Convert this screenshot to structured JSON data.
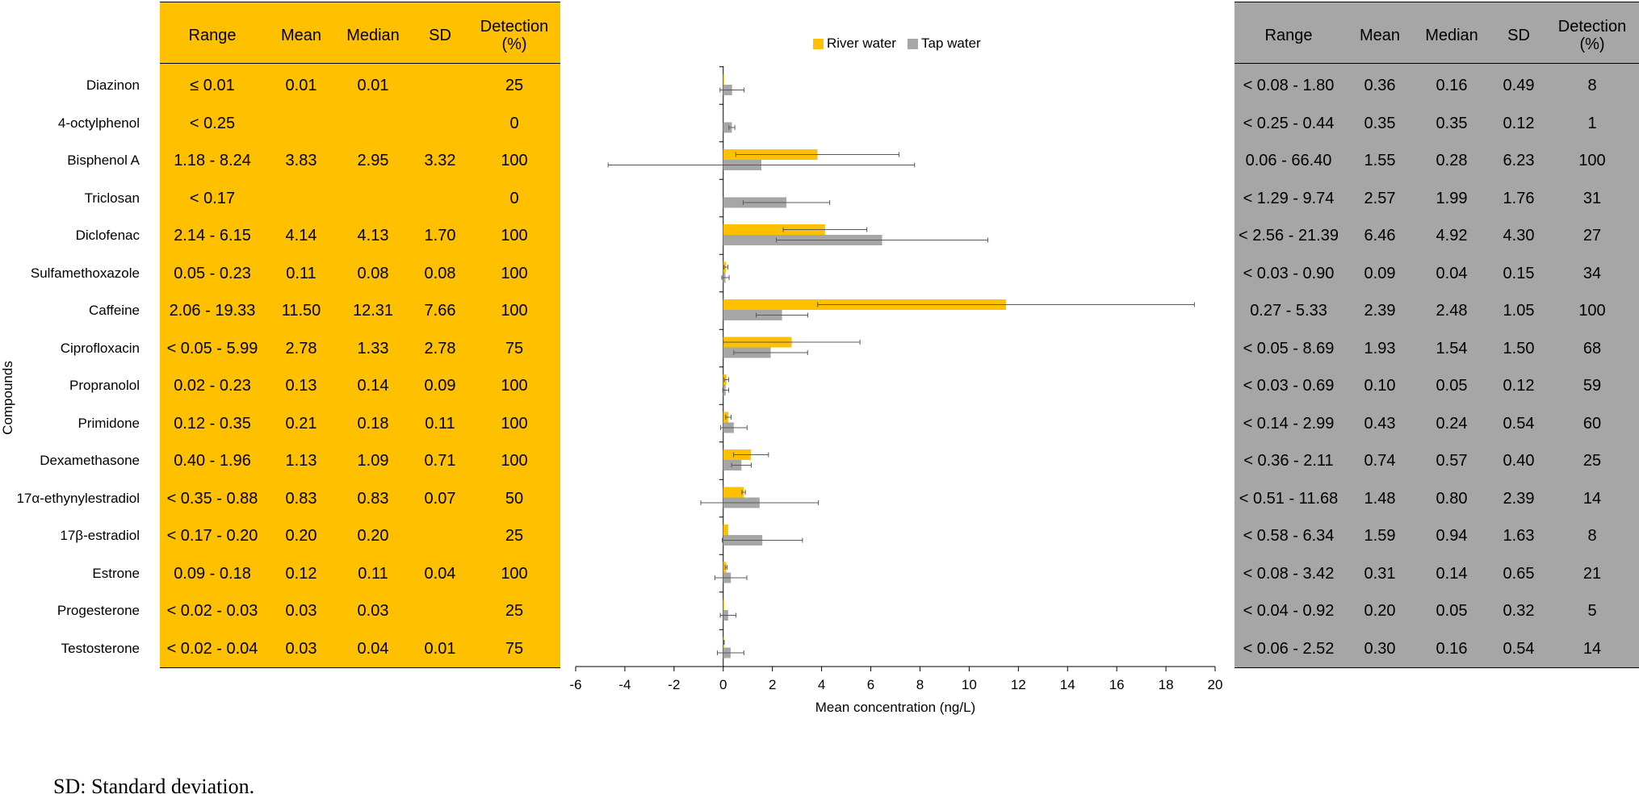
{
  "colors": {
    "river": "#FFC000",
    "tap": "#A6A6A6",
    "left_table_bg": "#FFC000",
    "right_table_bg": "#A6A6A6"
  },
  "ylabel": "Compounds",
  "footnote": "SD: Standard deviation.",
  "left_table": {
    "headers": [
      "Range",
      "Mean",
      "Median",
      "SD",
      "Detection\n(%)"
    ],
    "rows": [
      [
        "≤ 0.01",
        "0.01",
        "0.01",
        "",
        "25"
      ],
      [
        "< 0.25",
        "",
        "",
        "",
        "0"
      ],
      [
        "1.18 - 8.24",
        "3.83",
        "2.95",
        "3.32",
        "100"
      ],
      [
        "< 0.17",
        "",
        "",
        "",
        "0"
      ],
      [
        "2.14 - 6.15",
        "4.14",
        "4.13",
        "1.70",
        "100"
      ],
      [
        "0.05 - 0.23",
        "0.11",
        "0.08",
        "0.08",
        "100"
      ],
      [
        "2.06 - 19.33",
        "11.50",
        "12.31",
        "7.66",
        "100"
      ],
      [
        "< 0.05 - 5.99",
        "2.78",
        "1.33",
        "2.78",
        "75"
      ],
      [
        "0.02 - 0.23",
        "0.13",
        "0.14",
        "0.09",
        "100"
      ],
      [
        "0.12 - 0.35",
        "0.21",
        "0.18",
        "0.11",
        "100"
      ],
      [
        "0.40 - 1.96",
        "1.13",
        "1.09",
        "0.71",
        "100"
      ],
      [
        "< 0.35 - 0.88",
        "0.83",
        "0.83",
        "0.07",
        "50"
      ],
      [
        "< 0.17 - 0.20",
        "0.20",
        "0.20",
        "",
        "25"
      ],
      [
        "0.09 - 0.18",
        "0.12",
        "0.11",
        "0.04",
        "100"
      ],
      [
        "< 0.02 - 0.03",
        "0.03",
        "0.03",
        "",
        "25"
      ],
      [
        "< 0.02 - 0.04",
        "0.03",
        "0.04",
        "0.01",
        "75"
      ]
    ]
  },
  "right_table": {
    "headers": [
      "Range",
      "Mean",
      "Median",
      "SD",
      "Detection\n(%)"
    ],
    "rows": [
      [
        "< 0.08 - 1.80",
        "0.36",
        "0.16",
        "0.49",
        "8"
      ],
      [
        "< 0.25 - 0.44",
        "0.35",
        "0.35",
        "0.12",
        "1"
      ],
      [
        "0.06 - 66.40",
        "1.55",
        "0.28",
        "6.23",
        "100"
      ],
      [
        "< 1.29 - 9.74",
        "2.57",
        "1.99",
        "1.76",
        "31"
      ],
      [
        "< 2.56 - 21.39",
        "6.46",
        "4.92",
        "4.30",
        "27"
      ],
      [
        "< 0.03 - 0.90",
        "0.09",
        "0.04",
        "0.15",
        "34"
      ],
      [
        "0.27 - 5.33",
        "2.39",
        "2.48",
        "1.05",
        "100"
      ],
      [
        "< 0.05 - 8.69",
        "1.93",
        "1.54",
        "1.50",
        "68"
      ],
      [
        "< 0.03 - 0.69",
        "0.10",
        "0.05",
        "0.12",
        "59"
      ],
      [
        "< 0.14 - 2.99",
        "0.43",
        "0.24",
        "0.54",
        "60"
      ],
      [
        "< 0.36 - 2.11",
        "0.74",
        "0.57",
        "0.40",
        "25"
      ],
      [
        "< 0.51 - 11.68",
        "1.48",
        "0.80",
        "2.39",
        "14"
      ],
      [
        "< 0.58 - 6.34",
        "1.59",
        "0.94",
        "1.63",
        "8"
      ],
      [
        "< 0.08 - 3.42",
        "0.31",
        "0.14",
        "0.65",
        "21"
      ],
      [
        "< 0.04 - 0.92",
        "0.20",
        "0.05",
        "0.32",
        "5"
      ],
      [
        "< 0.06 - 2.52",
        "0.30",
        "0.16",
        "0.54",
        "14"
      ]
    ]
  },
  "chart_data": {
    "type": "bar",
    "orientation": "horizontal",
    "title": "",
    "xlabel": "Mean concentration (ng/L)",
    "ylabel": "Compounds",
    "xlim": [
      -6,
      20
    ],
    "xticks": [
      "-6",
      "-4",
      "-2",
      "0",
      "2",
      "4",
      "6",
      "8",
      "10",
      "12",
      "14",
      "16",
      "18",
      "20"
    ],
    "grid": false,
    "legend_position": "top",
    "categories": [
      "Diazinon",
      "4-octylphenol",
      "Bisphenol A",
      "Triclosan",
      "Diclofenac",
      "Sulfamethoxazole",
      "Caffeine",
      "Ciprofloxacin",
      "Propranolol",
      "Primidone",
      "Dexamethasone",
      "17α-ethynylestradiol",
      "17β-estradiol",
      "Estrone",
      "Progesterone",
      "Testosterone"
    ],
    "series": [
      {
        "name": "River water",
        "color": "#FFC000",
        "values": [
          0.01,
          0,
          3.83,
          0,
          4.14,
          0.11,
          11.5,
          2.78,
          0.13,
          0.21,
          1.13,
          0.83,
          0.2,
          0.12,
          0.03,
          0.03
        ],
        "errors": [
          0,
          0,
          3.32,
          0,
          1.7,
          0.08,
          7.66,
          2.78,
          0.09,
          0.11,
          0.71,
          0.07,
          0,
          0.04,
          0,
          0.01
        ]
      },
      {
        "name": "Tap water",
        "color": "#A6A6A6",
        "values": [
          0.36,
          0.35,
          1.55,
          2.57,
          6.46,
          0.09,
          2.39,
          1.93,
          0.1,
          0.43,
          0.74,
          1.48,
          1.59,
          0.31,
          0.2,
          0.3
        ],
        "errors": [
          0.49,
          0.12,
          6.23,
          1.76,
          4.3,
          0.15,
          1.05,
          1.5,
          0.12,
          0.54,
          0.4,
          2.39,
          1.63,
          0.65,
          0.32,
          0.54
        ]
      }
    ]
  }
}
